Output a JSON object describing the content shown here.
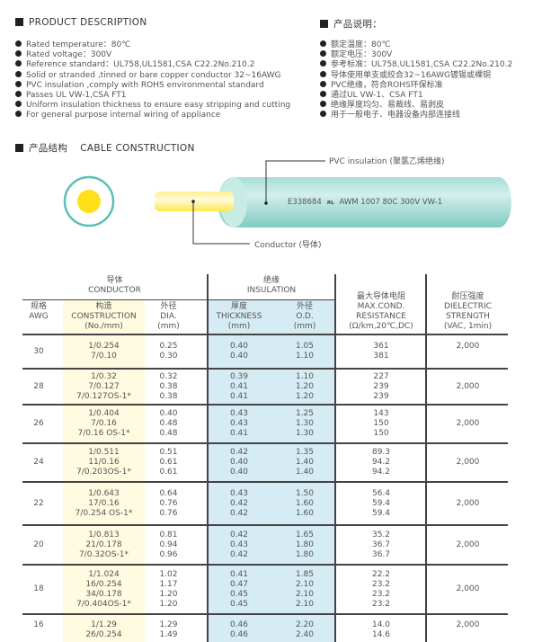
{
  "product_description": {
    "title": "PRODUCT DESCRIPTION",
    "items": [
      "Rated temperature：80℃",
      "Rated voltage：300V",
      "Reference standard：UL758,UL1581,CSA C22.2No.210.2",
      "Solid or stranded ,tinned or bare copper conductor 32~16AWG",
      "PVC insulation ,comply with ROHS environmental standard",
      "Passes UL VW-1,CSA FT1",
      "Uniform insulation thickness to ensure easy stripping and cutting",
      "For general purpose internal wiring of appliance"
    ]
  },
  "product_description_cn": {
    "title": "产品说明：",
    "items": [
      "额定温度：80℃",
      "额定电压：300V",
      "参考标准：UL758,UL1581,CSA C22.2No.210.2",
      "导体使用单支或绞合32~16AWG镀锡或裸铜",
      "PVC绝缘，符合ROHS环保标准",
      "通过UL VW-1、CSA FT1",
      "绝缘厚度均匀、易裁线、易剥皮",
      "用于一般电子、电器设备内部连接线"
    ]
  },
  "cable_construction": {
    "title_cn": "产品结构",
    "title_en": "CABLE CONSTRUCTION",
    "insulation_label": "PVC insulation (聚氯乙烯绝缘)",
    "conductor_label": "Conductor (导体)",
    "print_code": "E338684",
    "print_mark": "UL",
    "print_text": "AWM 1007 80C 300V VW-1",
    "colors": {
      "insulation": "#8fd3cc",
      "conductor": "#ffe01a"
    }
  },
  "table": {
    "group_conductor": {
      "cn": "导体",
      "en": "CONDUCTOR"
    },
    "group_insulation": {
      "cn": "绝缘",
      "en": "INSULATION"
    },
    "headers": {
      "awg": [
        "规格",
        "AWG"
      ],
      "construction": [
        "构造",
        "CONSTRUCTION",
        "(No./mm)"
      ],
      "dia": [
        "外径",
        "DIA.",
        "(mm)"
      ],
      "thickness": [
        "厚度",
        "THICKNESS",
        "(mm)"
      ],
      "od": [
        "外径",
        "O.D.",
        "(mm)"
      ],
      "resistance": [
        "最大导体电阻",
        "MAX.COND.",
        "RESISTANCE",
        "(Ω/km,20℃,DC)"
      ],
      "dielectric": [
        "耐压强度",
        "DIELECTRIC",
        "STRENGTH",
        "(VAC, 1min)"
      ]
    },
    "colors": {
      "construction_col": "#fffbe0",
      "insulation_col": "#d5ecf4"
    },
    "rows": [
      {
        "awg": "30",
        "construction": [
          "1/0.254",
          "7/0.10"
        ],
        "dia": [
          "0.25",
          "0.30"
        ],
        "thickness": [
          "0.40",
          "0.40"
        ],
        "od": [
          "1.05",
          "1.10"
        ],
        "resistance": [
          "361",
          "381"
        ],
        "dielectric": "2,000"
      },
      {
        "awg": "28",
        "construction": [
          "1/0.32",
          "7/0.127",
          "7/0.127OS-1*"
        ],
        "dia": [
          "0.32",
          "0.38",
          "0.38"
        ],
        "thickness": [
          "0.39",
          "0.41",
          "0.41"
        ],
        "od": [
          "1.10",
          "1.20",
          "1.20"
        ],
        "resistance": [
          "227",
          "239",
          "239"
        ],
        "dielectric": "2,000"
      },
      {
        "awg": "26",
        "construction": [
          "1/0.404",
          "7/0.16",
          "7/0.16 OS-1*"
        ],
        "dia": [
          "0.40",
          "0.48",
          "0.48"
        ],
        "thickness": [
          "0.43",
          "0.43",
          "0.41"
        ],
        "od": [
          "1.25",
          "1.30",
          "1.30"
        ],
        "resistance": [
          "143",
          "150",
          "150"
        ],
        "dielectric": "2,000"
      },
      {
        "awg": "24",
        "construction": [
          "1/0.511",
          "11/0.16",
          "7/0.203OS-1*"
        ],
        "dia": [
          "0.51",
          "0.61",
          "0.61"
        ],
        "thickness": [
          "0.42",
          "0.40",
          "0.40"
        ],
        "od": [
          "1.35",
          "1.40",
          "1.40"
        ],
        "resistance": [
          "89.3",
          "94.2",
          "94.2"
        ],
        "dielectric": "2,000"
      },
      {
        "awg": "22",
        "construction": [
          "1/0.643",
          "17/0.16",
          "7/0.254 OS-1*"
        ],
        "dia": [
          "0.64",
          "0.76",
          "0.76"
        ],
        "thickness": [
          "0.43",
          "0.42",
          "0.42"
        ],
        "od": [
          "1.50",
          "1.60",
          "1.60"
        ],
        "resistance": [
          "56.4",
          "59.4",
          "59.4"
        ],
        "dielectric": "2,000"
      },
      {
        "awg": "20",
        "construction": [
          "1/0.813",
          "21/0.178",
          "7/0.32OS-1*"
        ],
        "dia": [
          "0.81",
          "0.94",
          "0.96"
        ],
        "thickness": [
          "0.42",
          "0.43",
          "0.42"
        ],
        "od": [
          "1.65",
          "1.80",
          "1.80"
        ],
        "resistance": [
          "35.2",
          "36.7",
          "36.7"
        ],
        "dielectric": "2,000"
      },
      {
        "awg": "18",
        "construction": [
          "1/1.024",
          "16/0.254",
          "34/0.178",
          "7/0.404OS-1*"
        ],
        "dia": [
          "1.02",
          "1.17",
          "1.20",
          "1.20"
        ],
        "thickness": [
          "0.41",
          "0.47",
          "0.45",
          "0.45"
        ],
        "od": [
          "1.85",
          "2.10",
          "2.10",
          "2.10"
        ],
        "resistance": [
          "22.2",
          "23.2",
          "23.2",
          "23.2"
        ],
        "dielectric": "2,000"
      },
      {
        "awg": "16",
        "construction": [
          "1/1.29",
          "26/0.254"
        ],
        "dia": [
          "1.29",
          "1.49"
        ],
        "thickness": [
          "0.46",
          "0.46"
        ],
        "od": [
          "2.20",
          "2.40"
        ],
        "resistance": [
          "14.0",
          "14.6"
        ],
        "dielectric": "2,000"
      }
    ]
  }
}
